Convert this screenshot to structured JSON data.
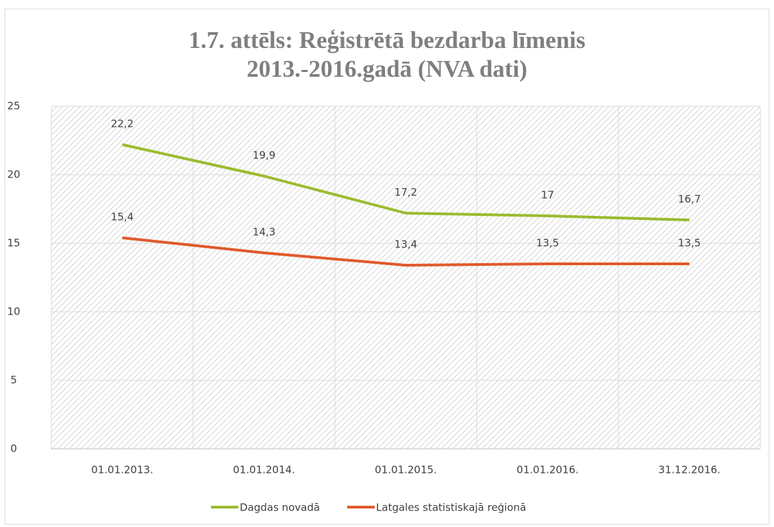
{
  "chart_data": {
    "type": "line",
    "title": "1.7. attēls: Reģistrētā bezdarba līmenis 2013.-2016.gadā (NVA dati)",
    "categories": [
      "01.01.2013.",
      "01.01.2014.",
      "01.01.2015.",
      "01.01.2016.",
      "31.12.2016."
    ],
    "series": [
      {
        "name": "Dagdas novadā",
        "color": "#9bbb2f",
        "values": [
          22.2,
          19.9,
          17.2,
          17,
          16.7
        ],
        "value_labels": [
          "22,2",
          "19,9",
          "17,2",
          "17",
          "16,7"
        ]
      },
      {
        "name": "Latgales statistiskajā reģionā",
        "color": "#e05a2b",
        "values": [
          15.4,
          14.3,
          13.4,
          13.5,
          13.5
        ],
        "value_labels": [
          "15,4",
          "14,3",
          "13,4",
          "13,5",
          "13,5"
        ]
      }
    ],
    "ylim": [
      0,
      25
    ],
    "yticks": [
      0,
      5,
      10,
      15,
      20,
      25
    ],
    "grid": true,
    "legend": "bottom"
  }
}
